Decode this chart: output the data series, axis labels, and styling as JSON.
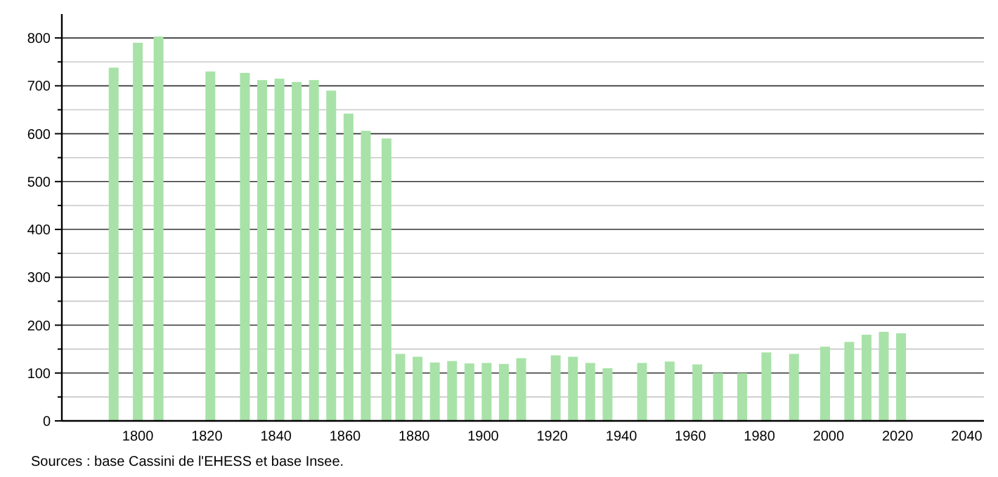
{
  "chart_data": {
    "type": "bar",
    "x": [
      1793,
      1800,
      1806,
      1821,
      1831,
      1836,
      1841,
      1846,
      1851,
      1856,
      1861,
      1866,
      1872,
      1876,
      1881,
      1886,
      1891,
      1896,
      1901,
      1906,
      1911,
      1921,
      1926,
      1931,
      1936,
      1946,
      1954,
      1962,
      1968,
      1975,
      1982,
      1990,
      1999,
      2006,
      2011,
      2016,
      2021
    ],
    "values": [
      738,
      790,
      803,
      730,
      727,
      712,
      715,
      708,
      712,
      690,
      642,
      606,
      590,
      140,
      134,
      122,
      125,
      120,
      121,
      119,
      131,
      137,
      134,
      121,
      110,
      121,
      124,
      118,
      100,
      100,
      143,
      140,
      155,
      165,
      180,
      186,
      183
    ],
    "color": "#a8e2a8",
    "xlim": [
      1778,
      2045
    ],
    "xticks": [
      1800,
      1820,
      1840,
      1860,
      1880,
      1900,
      1920,
      1940,
      1960,
      1980,
      2000,
      2020,
      2040
    ],
    "ylim": [
      0,
      850
    ],
    "yticks": [
      0,
      {
        "value": 50,
        "label": null
      },
      100,
      {
        "value": 150,
        "label": null
      },
      200,
      {
        "value": 250,
        "label": null
      },
      300,
      {
        "value": 350,
        "label": null
      },
      400,
      {
        "value": 450,
        "label": null
      },
      500,
      {
        "value": 550,
        "label": null
      },
      600,
      {
        "value": 650,
        "label": null
      },
      700,
      {
        "value": 750,
        "label": null
      },
      800
    ],
    "grid": "y",
    "annotations": [
      "Sources : base Cassini de l'EHESS et base Insee."
    ]
  }
}
